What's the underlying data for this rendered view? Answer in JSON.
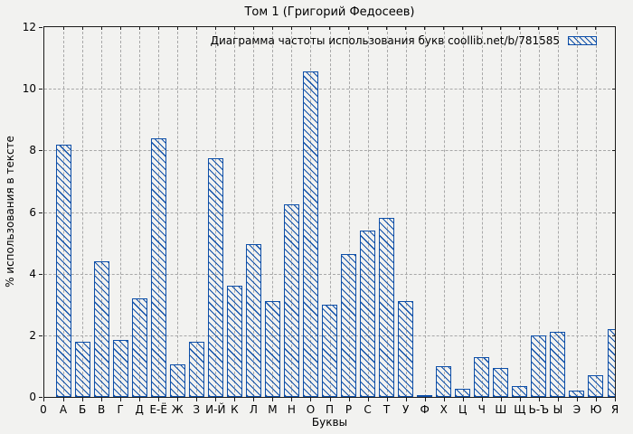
{
  "colors": {
    "bar_outline": "#0e4fa8",
    "hatch": "#0e4fa8",
    "gridline": "#a8a8a8",
    "axis": "#1a1a1a",
    "background": "#f2f2f0",
    "text": "#000000"
  },
  "chart_data": {
    "type": "bar",
    "title": "Том 1 (Григорий Федосеев)",
    "legend_label": "Диаграмма частоты использования букв coollib.net/b/781585",
    "xlabel": "Буквы",
    "ylabel": "% использования в тексте",
    "x_origin_tick_label": "0",
    "ylim": [
      0,
      12
    ],
    "yticks": [
      0,
      2,
      4,
      6,
      8,
      10,
      12
    ],
    "grid": true,
    "legend_position": "top-right-inside",
    "bar_style": "diagonal-hatch",
    "categories": [
      "А",
      "Б",
      "В",
      "Г",
      "Д",
      "Е-Ё",
      "Ж",
      "З",
      "И-Й",
      "К",
      "Л",
      "М",
      "Н",
      "О",
      "П",
      "Р",
      "С",
      "Т",
      "У",
      "Ф",
      "Х",
      "Ц",
      "Ч",
      "Ш",
      "Щ",
      "Ь-Ъ",
      "Ы",
      "Э",
      "Ю",
      "Я"
    ],
    "values": [
      8.2,
      1.8,
      4.4,
      1.85,
      3.2,
      8.4,
      1.05,
      1.8,
      7.75,
      3.6,
      4.95,
      3.1,
      6.25,
      10.55,
      3.0,
      4.65,
      5.4,
      5.8,
      3.1,
      0.05,
      1.0,
      0.25,
      1.3,
      0.95,
      0.35,
      2.0,
      2.1,
      0.2,
      0.7,
      2.2
    ]
  }
}
